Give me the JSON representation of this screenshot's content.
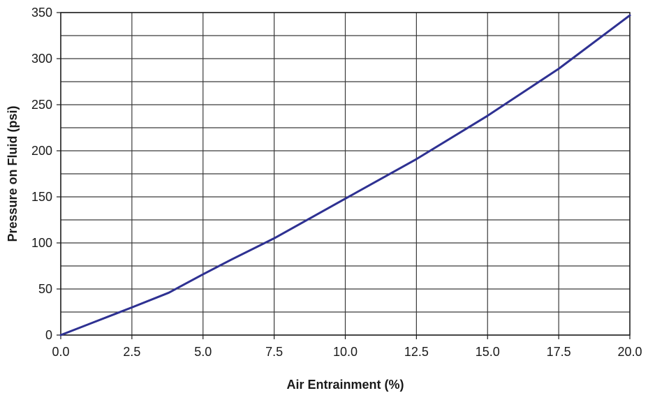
{
  "chart_data": {
    "type": "line",
    "title": "",
    "xlabel": "Air Entrainment (%)",
    "ylabel": "Pressure on Fluid (psi)",
    "xlim": [
      0,
      20
    ],
    "ylim": [
      0,
      350
    ],
    "x_ticks": [
      "0.0",
      "2.5",
      "5.0",
      "7.5",
      "10.0",
      "12.5",
      "15.0",
      "17.5",
      "20.0"
    ],
    "y_ticks": [
      "0",
      "50",
      "100",
      "150",
      "200",
      "250",
      "300",
      "350"
    ],
    "grid": true,
    "series": [
      {
        "color": "#2e3192",
        "x": [
          0,
          2.0,
          2.5,
          3.8,
          5.0,
          6.0,
          7.5,
          10.0,
          12.5,
          15.0,
          17.5,
          20.0
        ],
        "y": [
          0,
          24,
          30,
          46,
          66,
          82,
          105,
          148,
          191,
          238,
          289,
          347
        ]
      }
    ]
  }
}
